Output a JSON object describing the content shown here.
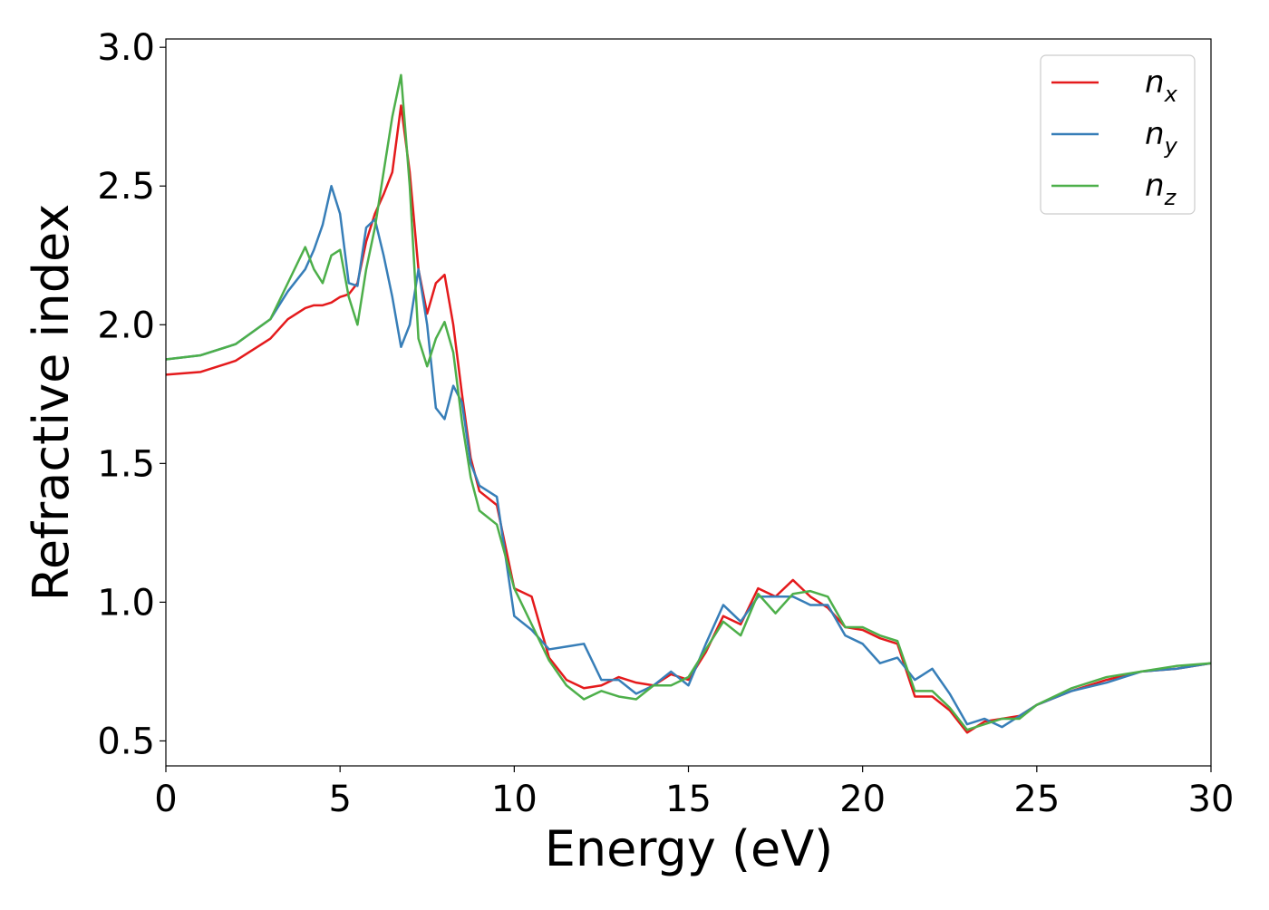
{
  "chart_data": {
    "type": "line",
    "x_label": "Energy (eV)",
    "y_label": "Refractive index",
    "x": [
      0,
      1,
      2,
      3,
      3.5,
      4,
      4.25,
      4.5,
      4.75,
      5,
      5.25,
      5.5,
      5.75,
      6,
      6.25,
      6.5,
      6.75,
      7,
      7.25,
      7.5,
      7.75,
      8,
      8.25,
      8.5,
      8.75,
      9,
      9.5,
      10,
      10.5,
      11,
      11.5,
      12,
      12.5,
      13,
      13.5,
      14,
      14.5,
      15,
      15.5,
      16,
      16.5,
      17,
      17.5,
      18,
      18.5,
      19,
      19.5,
      20,
      20.5,
      21,
      21.5,
      22,
      22.5,
      23,
      23.5,
      24,
      24.5,
      25,
      26,
      27,
      28,
      29,
      30
    ],
    "series": [
      {
        "name": "nx",
        "color": "#e41a1c",
        "values": [
          1.82,
          1.83,
          1.87,
          1.95,
          2.02,
          2.06,
          2.07,
          2.07,
          2.08,
          2.1,
          2.11,
          2.15,
          2.3,
          2.4,
          2.47,
          2.55,
          2.79,
          2.55,
          2.2,
          2.04,
          2.15,
          2.18,
          2.0,
          1.75,
          1.52,
          1.4,
          1.35,
          1.05,
          1.02,
          0.8,
          0.72,
          0.69,
          0.7,
          0.73,
          0.71,
          0.7,
          0.74,
          0.72,
          0.82,
          0.95,
          0.92,
          1.05,
          1.02,
          1.08,
          1.02,
          0.98,
          0.91,
          0.9,
          0.87,
          0.85,
          0.66,
          0.66,
          0.61,
          0.53,
          0.57,
          0.58,
          0.59,
          0.63,
          0.68,
          0.72,
          0.75,
          0.76,
          0.78
        ]
      },
      {
        "name": "ny",
        "color": "#377eb8",
        "values": [
          1.875,
          1.89,
          1.93,
          2.02,
          2.12,
          2.2,
          2.27,
          2.36,
          2.5,
          2.4,
          2.15,
          2.14,
          2.35,
          2.38,
          2.25,
          2.1,
          1.92,
          2.0,
          2.2,
          2.0,
          1.7,
          1.66,
          1.78,
          1.72,
          1.5,
          1.42,
          1.38,
          0.95,
          0.9,
          0.83,
          0.84,
          0.85,
          0.72,
          0.72,
          0.67,
          0.7,
          0.75,
          0.7,
          0.85,
          0.99,
          0.93,
          1.02,
          1.02,
          1.02,
          0.99,
          0.99,
          0.88,
          0.85,
          0.78,
          0.8,
          0.72,
          0.76,
          0.67,
          0.56,
          0.58,
          0.55,
          0.59,
          0.63,
          0.68,
          0.71,
          0.75,
          0.76,
          0.78
        ]
      },
      {
        "name": "nz",
        "color": "#4daf4a",
        "values": [
          1.875,
          1.89,
          1.93,
          2.02,
          2.15,
          2.28,
          2.2,
          2.15,
          2.25,
          2.27,
          2.1,
          2.0,
          2.2,
          2.35,
          2.55,
          2.75,
          2.9,
          2.5,
          1.95,
          1.85,
          1.95,
          2.01,
          1.9,
          1.65,
          1.45,
          1.33,
          1.28,
          1.05,
          0.92,
          0.79,
          0.7,
          0.65,
          0.68,
          0.66,
          0.65,
          0.7,
          0.7,
          0.73,
          0.83,
          0.93,
          0.88,
          1.03,
          0.96,
          1.03,
          1.04,
          1.02,
          0.91,
          0.91,
          0.88,
          0.86,
          0.68,
          0.68,
          0.62,
          0.54,
          0.56,
          0.58,
          0.58,
          0.63,
          0.69,
          0.73,
          0.75,
          0.77,
          0.78
        ]
      }
    ],
    "xlim": [
      0,
      30
    ],
    "xticks": [
      0,
      5,
      10,
      15,
      20,
      25,
      30
    ],
    "ylim": [
      0.41,
      3.03
    ],
    "yticks": [
      {
        "value": 0.5,
        "label": "0.5"
      },
      {
        "value": 1,
        "label": "1.0"
      },
      1.5,
      {
        "value": 2,
        "label": "2.0"
      },
      2.5,
      {
        "value": 3,
        "label": "3.0"
      }
    ],
    "grid": false,
    "legend": "upper right"
  }
}
